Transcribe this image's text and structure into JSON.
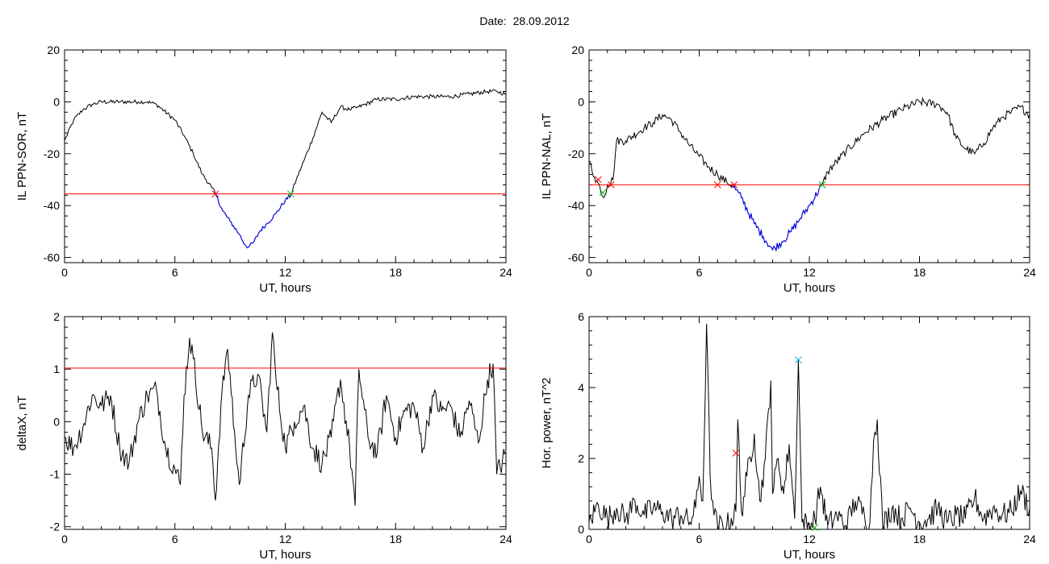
{
  "page": {
    "title": "Date:  28.09.2012"
  },
  "colors": {
    "trace": "#000000",
    "threshold": "#ff0000",
    "segment": "#0000ff",
    "marker_start": "#ff0000",
    "marker_end": "#00bb00",
    "marker_peak": "#00aaff"
  },
  "chart_data": [
    {
      "type": "line",
      "ylabel": "IL PPN-SOR, nT",
      "xlabel": "UT, hours",
      "xlim": [
        0,
        24
      ],
      "ylim": [
        -62,
        20
      ],
      "xticks": [
        0,
        6,
        12,
        18,
        24
      ],
      "yticks": [
        -60,
        -40,
        -20,
        0,
        20
      ],
      "threshold": -35.5,
      "highlight_range": [
        8.2,
        12.3
      ],
      "series": [
        {
          "x": [
            0,
            0.5,
            1,
            1.5,
            2,
            3,
            4,
            4.5,
            5,
            6,
            6.5,
            7,
            7.5,
            8,
            8.2,
            8.6,
            9,
            9.5,
            9.8,
            10,
            10.3,
            10.6,
            11,
            11.5,
            12,
            12.3,
            12.6,
            13,
            13.5,
            14,
            14.5,
            15,
            15.5,
            16,
            17,
            18,
            19,
            20,
            21,
            22,
            23,
            23.5,
            24
          ],
          "y": [
            -15,
            -7,
            -3,
            -1,
            0,
            0,
            0,
            0,
            -1,
            -7,
            -13,
            -20,
            -28,
            -33,
            -35.5,
            -42,
            -46,
            -51,
            -55,
            -56,
            -54,
            -50,
            -47,
            -43,
            -38,
            -36,
            -30,
            -23,
            -14,
            -4,
            -8,
            -2,
            -3,
            -2,
            1,
            1,
            2,
            2,
            2,
            3,
            4,
            4,
            3
          ]
        }
      ],
      "markers": [
        {
          "x": 8.2,
          "y": -35.5,
          "kind": "start"
        },
        {
          "x": 12.3,
          "y": -35.5,
          "kind": "end"
        }
      ]
    },
    {
      "type": "line",
      "ylabel": "IL PPN-NAL, nT",
      "xlabel": "UT, hours",
      "xlim": [
        0,
        24
      ],
      "ylim": [
        -62,
        20
      ],
      "xticks": [
        0,
        6,
        12,
        18,
        24
      ],
      "yticks": [
        -60,
        -40,
        -20,
        0,
        20
      ],
      "threshold": -32,
      "highlight_range": [
        7.8,
        12.7
      ],
      "series": [
        {
          "x": [
            0,
            0.3,
            0.6,
            0.8,
            1,
            1.3,
            1.5,
            2,
            3,
            3.5,
            4,
            4.5,
            5,
            5.5,
            6,
            6.5,
            7,
            7.5,
            7.8,
            8.3,
            9,
            9.5,
            10,
            10.5,
            11,
            11.5,
            12,
            12.7,
            13,
            14,
            15,
            16,
            17,
            18,
            19,
            19.5,
            20,
            20.5,
            21,
            21.5,
            22,
            22.5,
            23,
            23.5,
            24
          ],
          "y": [
            -23,
            -29,
            -33,
            -37,
            -32,
            -30,
            -15,
            -15,
            -10,
            -8,
            -5,
            -7,
            -12,
            -17,
            -21,
            -25,
            -28,
            -31,
            -32,
            -37,
            -47,
            -52,
            -57,
            -54,
            -50,
            -45,
            -40,
            -32,
            -27,
            -19,
            -12,
            -7,
            -3,
            0,
            -1,
            -4,
            -14,
            -18,
            -20,
            -16,
            -10,
            -6,
            -4,
            -2,
            -5
          ]
        }
      ],
      "markers": [
        {
          "x": 0.5,
          "y": -30,
          "kind": "start"
        },
        {
          "x": 0.75,
          "y": -35,
          "kind": "end"
        },
        {
          "x": 1.2,
          "y": -32,
          "kind": "start"
        },
        {
          "x": 7,
          "y": -32,
          "kind": "start"
        },
        {
          "x": 7.9,
          "y": -32,
          "kind": "start"
        },
        {
          "x": 12.7,
          "y": -32,
          "kind": "end"
        }
      ]
    },
    {
      "type": "line",
      "ylabel": "deltaX, nT",
      "xlabel": "UT, hours",
      "xlim": [
        0,
        24
      ],
      "ylim": [
        -2.05,
        2
      ],
      "xticks": [
        0,
        6,
        12,
        18,
        24
      ],
      "yticks": [
        -2,
        -1,
        0,
        1,
        2
      ],
      "threshold": 1.02,
      "series": [
        {
          "x": [
            0,
            0.5,
            1,
            1.5,
            2,
            2.5,
            3,
            3.5,
            4,
            4.5,
            5,
            5.5,
            6,
            6.3,
            6.5,
            6.8,
            7,
            7.5,
            8,
            8.2,
            8.5,
            8.8,
            9,
            9.3,
            9.5,
            10,
            10.5,
            11,
            11.3,
            11.5,
            12,
            12.5,
            13,
            13.5,
            14,
            14.5,
            15,
            15.5,
            15.8,
            16,
            16.5,
            17,
            17.5,
            18,
            18.5,
            19,
            19.5,
            20,
            20.5,
            21,
            21.5,
            22,
            22.5,
            23,
            23.3,
            23.5,
            24
          ],
          "y": [
            -0.3,
            -0.5,
            -0.1,
            0.5,
            0.3,
            0.5,
            -0.5,
            -0.8,
            0,
            0.5,
            0.6,
            -0.5,
            -0.9,
            -1.2,
            0.5,
            1.6,
            1.2,
            -0.2,
            -0.5,
            -1.5,
            0.3,
            1.3,
            0.9,
            -0.5,
            -1.2,
            0.5,
            0.9,
            -0.2,
            1.7,
            0.8,
            -0.5,
            0,
            0.3,
            -0.5,
            -0.8,
            -0.3,
            0.8,
            -0.5,
            -1.6,
            1.0,
            -0.3,
            -0.6,
            0.5,
            -0.3,
            0.2,
            0.3,
            -0.5,
            0.5,
            0.2,
            0.3,
            -0.3,
            0.4,
            -0.4,
            0.8,
            1.1,
            -1.0,
            -0.6
          ]
        }
      ],
      "markers": []
    },
    {
      "type": "line",
      "ylabel": "Hor. power, nT^2",
      "xlabel": "UT, hours",
      "xlim": [
        0,
        24
      ],
      "ylim": [
        0,
        6
      ],
      "xticks": [
        0,
        6,
        12,
        18,
        24
      ],
      "yticks": [
        0,
        2,
        4,
        6
      ],
      "series": [
        {
          "x": [
            0,
            0.5,
            1,
            1.5,
            2,
            2.5,
            3,
            3.5,
            4,
            4.5,
            5,
            5.5,
            5.8,
            6,
            6.2,
            6.4,
            6.6,
            6.8,
            7,
            7.5,
            8,
            8.1,
            8.3,
            8.6,
            9,
            9.3,
            9.6,
            9.9,
            10,
            10.3,
            10.6,
            10.9,
            11.2,
            11.4,
            11.6,
            12,
            12.3,
            12.6,
            13,
            13.5,
            14,
            14.5,
            15,
            15.3,
            15.5,
            15.7,
            16,
            16.5,
            17,
            17.5,
            18,
            18.5,
            19,
            19.5,
            20,
            20.5,
            21,
            21.5,
            22,
            22.5,
            23,
            23.5,
            24
          ],
          "y": [
            0.2,
            0.7,
            0.3,
            0.6,
            0.3,
            0.8,
            0.4,
            0.6,
            0.5,
            0.3,
            0.4,
            0.2,
            0.6,
            1.5,
            0.8,
            5.8,
            1.5,
            0.4,
            0.1,
            0.1,
            0.5,
            3.1,
            0.5,
            1.5,
            2.7,
            0.8,
            2.0,
            4.2,
            1.0,
            2.0,
            1.0,
            2.4,
            0.3,
            4.8,
            0.2,
            0.1,
            0.3,
            1.2,
            0.1,
            0.4,
            0.1,
            0.8,
            0.4,
            0.2,
            2.5,
            3.1,
            0.1,
            0.6,
            0.3,
            0.6,
            0.2,
            0.3,
            0.6,
            0.2,
            0.4,
            0.3,
            0.9,
            0.3,
            0.6,
            0.4,
            0.5,
            1.1,
            0.6
          ]
        }
      ],
      "markers": [
        {
          "x": 8.0,
          "y": 2.15,
          "kind": "start"
        },
        {
          "x": 11.4,
          "y": 4.78,
          "kind": "peak"
        },
        {
          "x": 12.3,
          "y": 0.05,
          "kind": "end"
        }
      ]
    }
  ]
}
